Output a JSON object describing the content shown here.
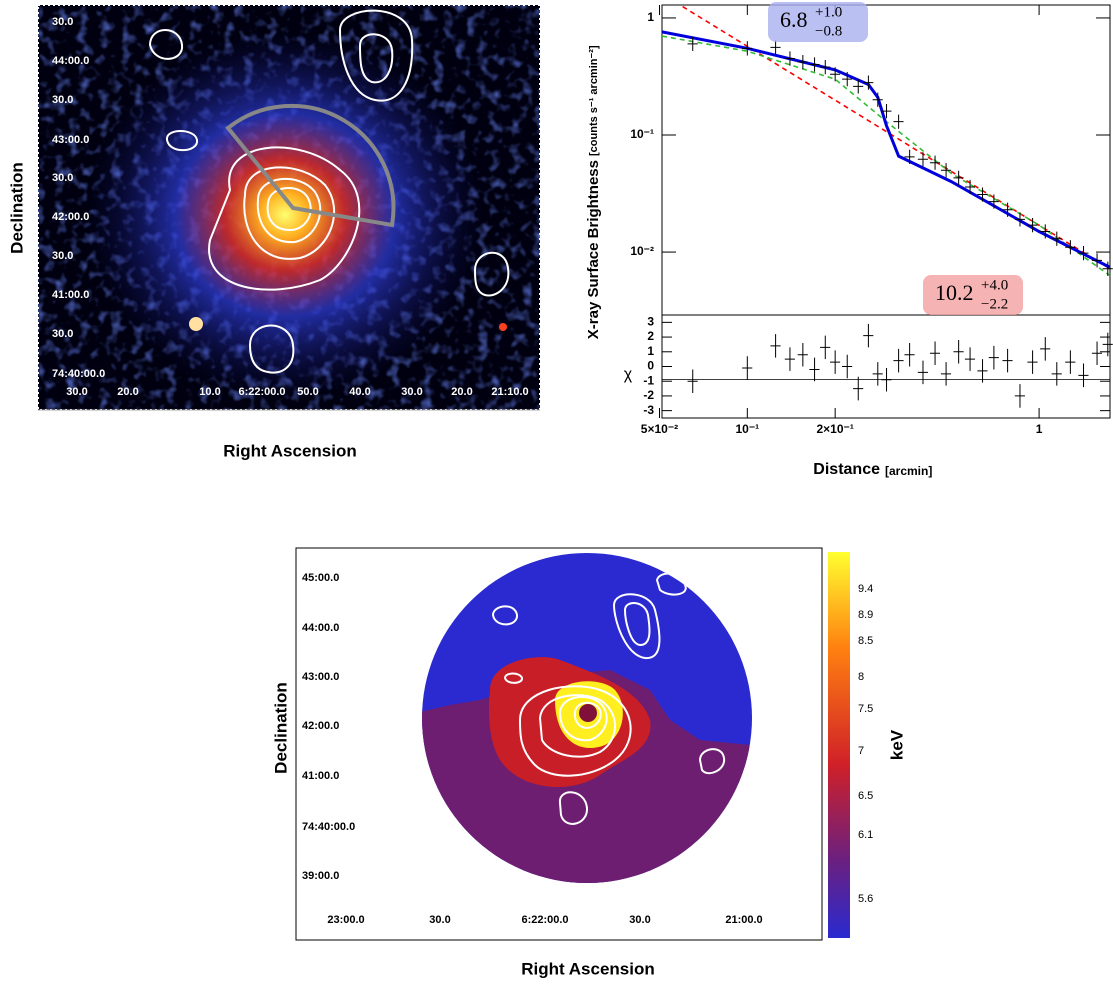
{
  "image_panel": {
    "x_label": "Right Ascension",
    "y_label": "Declination",
    "dec_labels": [
      "30.0",
      "44:00.0",
      "30.0",
      "43:00.0",
      "30.0",
      "42:00.0",
      "30.0",
      "41:00.0",
      "30.0",
      "74:40:00.0"
    ],
    "ra_labels": [
      "30.0",
      "20.0",
      "10.0",
      "6:22:00.0",
      "50.0",
      "40.0",
      "30.0",
      "20.0",
      "21:10.0"
    ]
  },
  "chart_data": [
    {
      "type": "scatter",
      "y_label": "X-ray Surface Brightness",
      "y_unit": "[counts s⁻¹ arcmin⁻²]",
      "log_x": true,
      "log_y": true,
      "xlim": [
        0.051,
        1.75
      ],
      "ylim": [
        0.0029,
        1.29
      ],
      "yticks": [
        {
          "value": 0.01,
          "label": "10⁻²"
        },
        {
          "value": 0.1,
          "label": "10⁻¹"
        },
        1
      ],
      "x": [
        0.065,
        0.1,
        0.125,
        0.14,
        0.155,
        0.17,
        0.185,
        0.2,
        0.22,
        0.24,
        0.26,
        0.28,
        0.3,
        0.33,
        0.36,
        0.4,
        0.44,
        0.48,
        0.53,
        0.58,
        0.64,
        0.7,
        0.78,
        0.86,
        0.95,
        1.05,
        1.15,
        1.28,
        1.42,
        1.58,
        1.72
      ],
      "values": [
        0.6,
        0.55,
        0.56,
        0.45,
        0.42,
        0.4,
        0.38,
        0.33,
        0.3,
        0.26,
        0.28,
        0.2,
        0.16,
        0.13,
        0.065,
        0.062,
        0.058,
        0.05,
        0.043,
        0.036,
        0.031,
        0.027,
        0.023,
        0.019,
        0.017,
        0.015,
        0.013,
        0.011,
        0.0098,
        0.0085,
        0.0072
      ],
      "color": "#000000",
      "models": [
        {
          "color": "#ff0000",
          "style": "dashed",
          "x": [
            0.06,
            1.75
          ],
          "values": [
            1.25,
            0.0072
          ]
        },
        {
          "color": "#33bb33",
          "style": "dashed",
          "x": [
            0.051,
            0.1,
            0.2,
            0.3,
            0.5,
            1.0,
            1.75
          ],
          "values": [
            0.7,
            0.52,
            0.3,
            0.13,
            0.047,
            0.017,
            0.0063
          ]
        },
        {
          "color": "#0000dd",
          "style": "solid",
          "x": [
            0.051,
            0.1,
            0.2,
            0.26,
            0.28,
            0.3,
            0.33,
            0.5,
            1.0,
            1.75
          ],
          "values": [
            0.76,
            0.55,
            0.36,
            0.27,
            0.21,
            0.12,
            0.066,
            0.04,
            0.015,
            0.0074
          ]
        }
      ],
      "annotations": [
        {
          "text": "6.8",
          "sup": "+1.0",
          "sub": "−0.8",
          "color": "#aab0f0"
        },
        {
          "text": "10.2",
          "sup": "+4.0",
          "sub": "−2.2",
          "color": "#f4a0a0"
        }
      ]
    },
    {
      "type": "scatter",
      "x_label": "Distance",
      "x_unit": "[arcmin]",
      "y_label": "χ",
      "log_x": true,
      "xlim": [
        0.051,
        1.75
      ],
      "ylim": [
        -3.5,
        3.5
      ],
      "xticks": [
        {
          "value": 0.05,
          "label": "5×10⁻²"
        },
        {
          "value": 0.1,
          "label": "10⁻¹"
        },
        {
          "value": 0.2,
          "label": "2×10⁻¹"
        },
        1
      ],
      "yticks": [
        -3,
        -2,
        -1,
        0,
        1,
        2,
        3
      ],
      "x": [
        0.065,
        0.1,
        0.125,
        0.14,
        0.155,
        0.17,
        0.185,
        0.2,
        0.22,
        0.24,
        0.26,
        0.28,
        0.3,
        0.33,
        0.36,
        0.4,
        0.44,
        0.48,
        0.53,
        0.58,
        0.64,
        0.7,
        0.78,
        0.86,
        0.95,
        1.05,
        1.15,
        1.28,
        1.42,
        1.58,
        1.72
      ],
      "values": [
        -1,
        -0.1,
        1.4,
        0.5,
        0.8,
        -0.2,
        1.3,
        0.3,
        0,
        -1.5,
        2.1,
        -0.5,
        -0.9,
        0.4,
        0.8,
        -0.4,
        0.9,
        -0.5,
        1,
        0.5,
        -0.3,
        0.6,
        0.4,
        -2,
        0.3,
        1.2,
        -0.5,
        0.3,
        -0.6,
        0.9,
        1.5
      ],
      "color": "#000000"
    }
  ],
  "temperature_map": {
    "x_label": "Right Ascension",
    "y_label": "Declination",
    "dec_labels": [
      "45:00.0",
      "44:00.0",
      "43:00.0",
      "42:00.0",
      "41:00.0",
      "74:40:00.0",
      "39:00.0"
    ],
    "ra_labels": [
      "23:00.0",
      "30.0",
      "6:22:00.0",
      "30.0",
      "21:00.0"
    ],
    "colorbar_labels": [
      "9.4",
      "8.9",
      "8.5",
      "8",
      "7.5",
      "7",
      "6.5",
      "6.1",
      "5.6"
    ],
    "colorbar_unit": "keV"
  }
}
